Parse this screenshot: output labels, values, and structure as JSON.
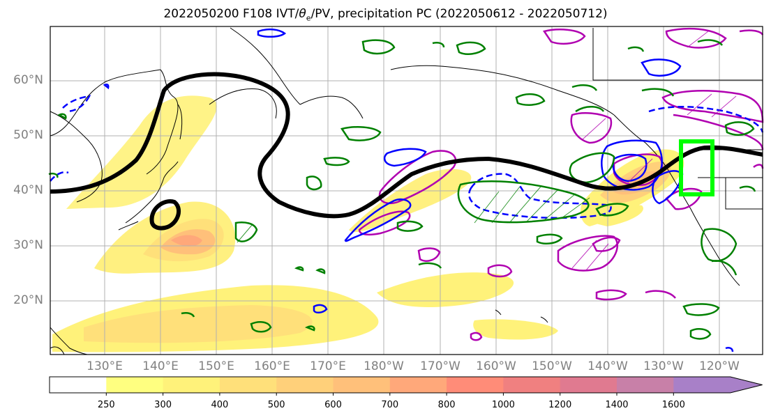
{
  "title": "2022050200 F108 IVT/",
  "title_theta": "θ",
  "title_sub": "e",
  "title_rest": "/PV, precipitation PC (2022050612 - 2022050712)",
  "lat_labels": [
    "60°N",
    "50°N",
    "40°N",
    "30°N",
    "20°N"
  ],
  "lon_labels": [
    "130°E",
    "140°E",
    "150°E",
    "160°E",
    "170°E",
    "180°W",
    "170°W",
    "160°W",
    "150°W",
    "140°W",
    "130°W",
    "120°W"
  ],
  "colorbar": {
    "levels": [
      "250",
      "300",
      "400",
      "500",
      "600",
      "700",
      "800",
      "1000",
      "1200",
      "1400",
      "1600"
    ],
    "colors": [
      "#ffff80",
      "#fff27a",
      "#ffe07a",
      "#ffd07a",
      "#ffc07a",
      "#ffa87a",
      "#ff8c78",
      "#f08080",
      "#e07a90",
      "#c880a8",
      "#a880c8"
    ]
  },
  "overlay_colors": {
    "pv_contour": "#000000",
    "precip_positive": "#008000",
    "theta_e_warm": "#b000b0",
    "theta_e_cold": "#0000ff",
    "target_box": "#00ff00"
  }
}
